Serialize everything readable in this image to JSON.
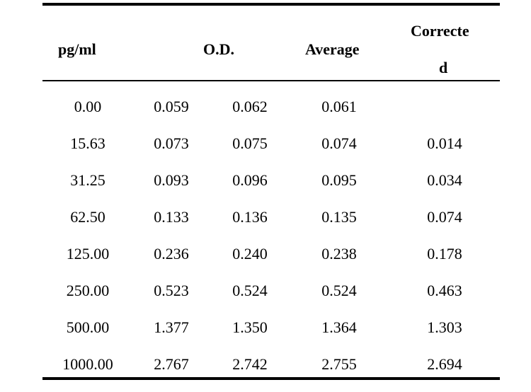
{
  "table": {
    "headers": {
      "pg_ml": "pg/ml",
      "od": "O.D.",
      "average": "Average",
      "corrected_line1": "Correcte",
      "corrected_line2": "d"
    },
    "rows": [
      [
        "0.00",
        "0.059",
        "0.062",
        "0.061",
        ""
      ],
      [
        "15.63",
        "0.073",
        "0.075",
        "0.074",
        "0.014"
      ],
      [
        "31.25",
        "0.093",
        "0.096",
        "0.095",
        "0.034"
      ],
      [
        "62.50",
        "0.133",
        "0.136",
        "0.135",
        "0.074"
      ],
      [
        "125.00",
        "0.236",
        "0.240",
        "0.238",
        "0.178"
      ],
      [
        "250.00",
        "0.523",
        "0.524",
        "0.524",
        "0.463"
      ],
      [
        "500.00",
        "1.377",
        "1.350",
        "1.364",
        "1.303"
      ],
      [
        "1000.00",
        "2.767",
        "2.742",
        "2.755",
        "2.694"
      ]
    ]
  }
}
